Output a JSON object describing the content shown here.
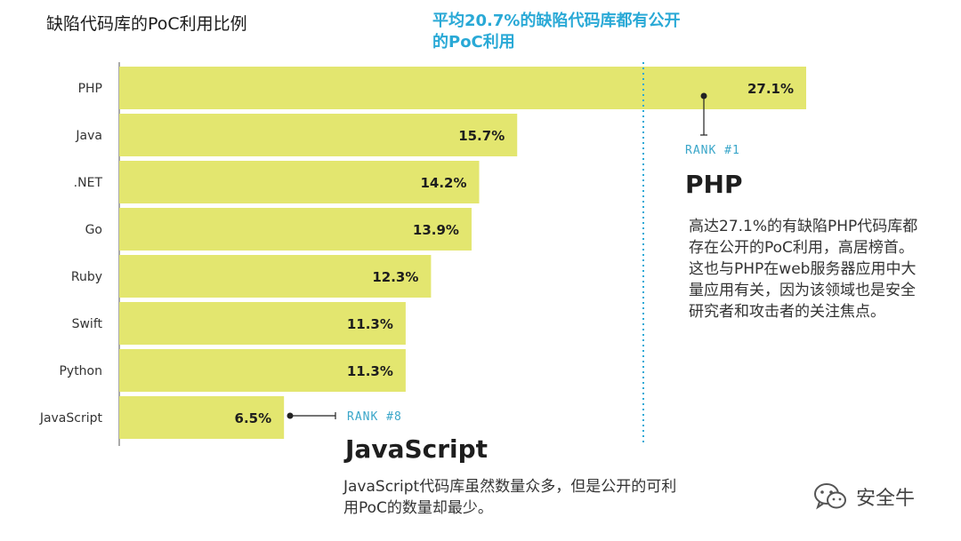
{
  "title": "缺陷代码库的PoC利用比例",
  "average_note": "平均20.7%的缺陷代码库都有公开的PoC利用",
  "colors": {
    "bar": "#e3e66f",
    "accent": "#29a9d6",
    "text": "#222222"
  },
  "chart_data": {
    "type": "bar",
    "orientation": "horizontal",
    "categories": [
      "PHP",
      "Java",
      ".NET",
      "Go",
      "Ruby",
      "Swift",
      "Python",
      "JavaScript"
    ],
    "values": [
      27.1,
      15.7,
      14.2,
      13.9,
      12.3,
      11.3,
      11.3,
      6.5
    ],
    "value_labels": [
      "27.1%",
      "15.7%",
      "14.2%",
      "13.9%",
      "12.3%",
      "11.3%",
      "11.3%",
      "6.5%"
    ],
    "unit": "%",
    "average": 20.7,
    "xlim": [
      0,
      30
    ],
    "grid": false
  },
  "callouts": {
    "php": {
      "rank": "RANK #1",
      "name": "PHP",
      "description": "高达27.1%的有缺陷PHP代码库都存在公开的PoC利用，高居榜首。这也与PHP在web服务器应用中大量应用有关，因为该领域也是安全研究者和攻击者的关注焦点。"
    },
    "javascript": {
      "rank": "RANK #8",
      "name": "JavaScript",
      "description": "JavaScript代码库虽然数量众多，但是公开的可利用PoC的数量却最少。"
    }
  },
  "watermark": {
    "icon": "wechat-icon",
    "text": "安全牛"
  }
}
